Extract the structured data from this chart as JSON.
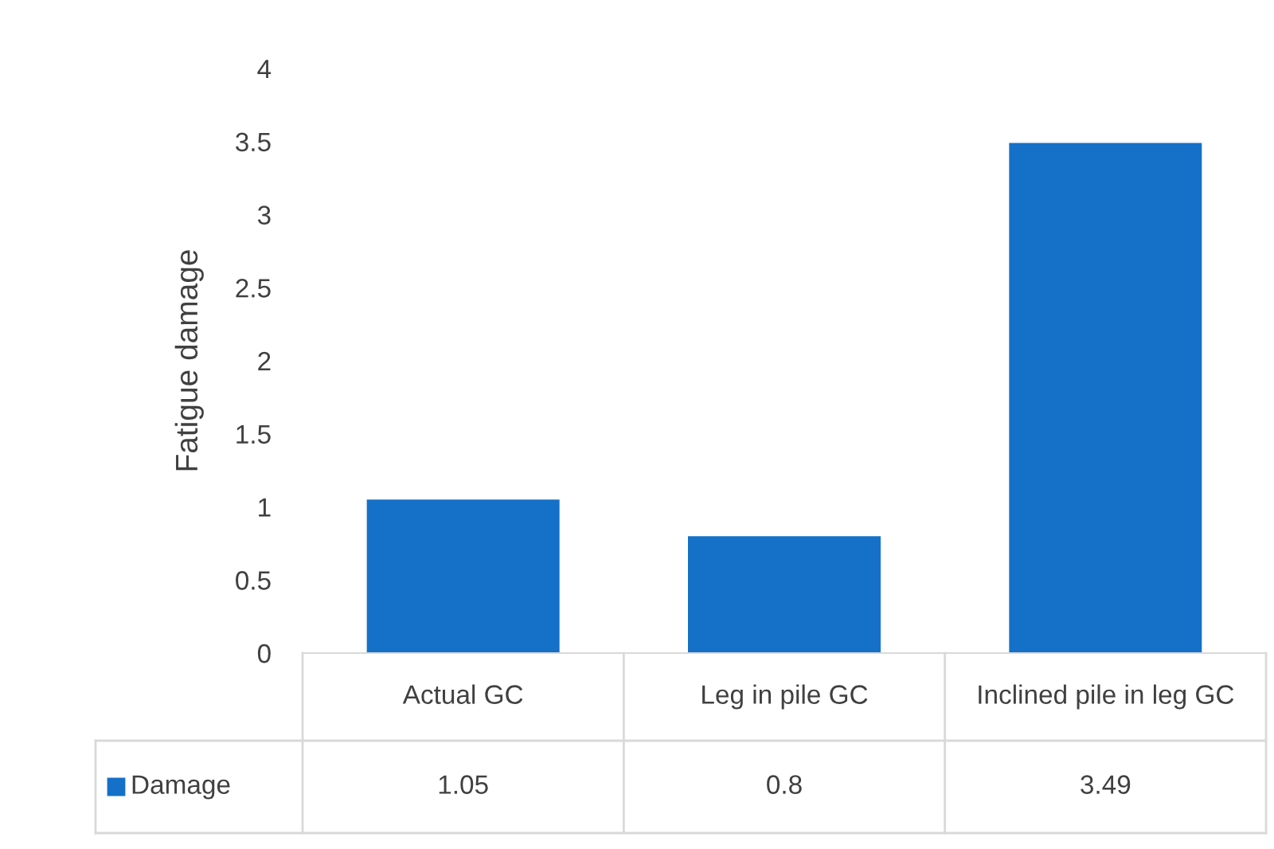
{
  "chart_data": {
    "type": "bar",
    "ylabel": "Fatigue damage",
    "categories": [
      "Actual GC",
      "Leg in pile GC",
      "Inclined pile in leg GC"
    ],
    "series": [
      {
        "name": "Damage",
        "color": "#1570c8",
        "values": [
          1.05,
          0.8,
          3.49
        ]
      }
    ],
    "ylim": [
      0,
      4
    ],
    "yticks": [
      0,
      0.5,
      1,
      1.5,
      2,
      2.5,
      3,
      3.5,
      4
    ],
    "grid": false,
    "legend": "bottom",
    "data_labels": true
  }
}
